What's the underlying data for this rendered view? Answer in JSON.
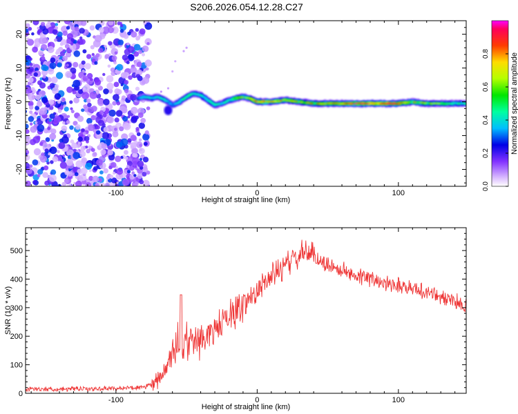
{
  "title": "S206.2026.054.12.28.C27",
  "chart_data": [
    {
      "type": "heatmap",
      "xlabel": "Height of straight line (km)",
      "ylabel": "Frequency (Hz)",
      "xlim": [
        -164,
        148
      ],
      "ylim": [
        -25,
        24
      ],
      "x_ticks": [
        -100,
        0,
        100
      ],
      "y_ticks": [
        -20,
        -10,
        0,
        10,
        20
      ],
      "colorbar": {
        "label": "Normalized spectral amplitude",
        "range": [
          0,
          1
        ],
        "ticks": [
          0.0,
          0.2,
          0.4,
          0.6,
          0.8
        ]
      },
      "noise_region_x": [
        -164,
        -83
      ],
      "ridge": {
        "x": [
          -84,
          -80,
          -75,
          -70,
          -65,
          -60,
          -55,
          -50,
          -45,
          -40,
          -35,
          -30,
          -25,
          -20,
          -15,
          -10,
          -5,
          0,
          10,
          20,
          30,
          40,
          50,
          60,
          70,
          80,
          90,
          100,
          110,
          120,
          130,
          148
        ],
        "y": [
          1.0,
          1.5,
          1.0,
          1.5,
          0.5,
          -1.0,
          0.0,
          1.5,
          2.5,
          2.0,
          0.5,
          -1.0,
          -0.5,
          0.5,
          1.0,
          1.5,
          1.0,
          0.0,
          0.0,
          0.5,
          0.0,
          -0.5,
          -0.5,
          -0.5,
          -0.5,
          -0.5,
          -0.5,
          -0.5,
          0.0,
          -0.5,
          -0.5,
          -0.5
        ],
        "amplitude": [
          0.45,
          0.5,
          0.55,
          0.55,
          0.55,
          0.45,
          0.55,
          0.6,
          0.6,
          0.55,
          0.6,
          0.55,
          0.55,
          0.6,
          0.75,
          0.7,
          0.65,
          0.85,
          0.75,
          0.75,
          0.7,
          0.75,
          0.75,
          0.75,
          0.9,
          0.85,
          0.85,
          0.85,
          0.75,
          0.7,
          0.65,
          0.6
        ]
      }
    },
    {
      "type": "line",
      "xlabel": "Height of straight line (km)",
      "ylabel": "SNR (10 * v/v)",
      "xlim": [
        -164,
        148
      ],
      "ylim": [
        0,
        580
      ],
      "x_ticks": [
        -100,
        0,
        100
      ],
      "y_ticks": [
        0,
        100,
        200,
        300,
        400,
        500
      ],
      "color": "#ee3333",
      "envelope": {
        "x": [
          -164,
          -120,
          -80,
          -75,
          -70,
          -65,
          -60,
          -55,
          -50,
          -40,
          -30,
          -20,
          -10,
          0,
          10,
          20,
          30,
          35,
          40,
          50,
          60,
          80,
          100,
          120,
          140,
          148
        ],
        "y": [
          15,
          15,
          20,
          30,
          45,
          80,
          140,
          170,
          170,
          190,
          220,
          270,
          310,
          360,
          410,
          450,
          480,
          500,
          480,
          450,
          430,
          400,
          380,
          355,
          320,
          310
        ]
      }
    }
  ]
}
